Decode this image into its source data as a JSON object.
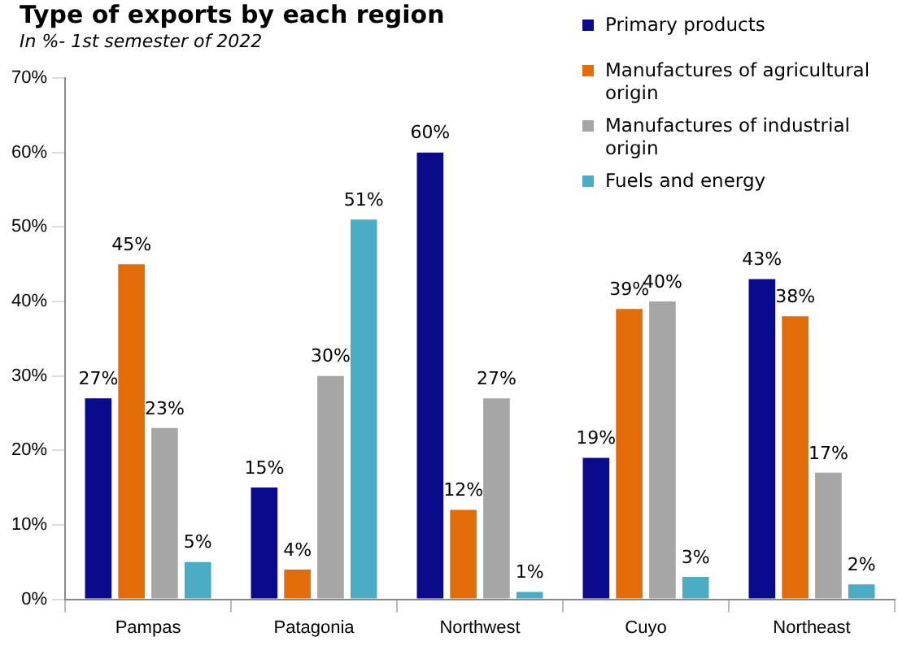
{
  "chart_data": {
    "type": "bar",
    "title": "Type of exports by each region",
    "subtitle": "In %- 1st semester of 2022",
    "categories": [
      "Pampas",
      "Patagonia",
      "Northwest",
      "Cuyo",
      "Northeast"
    ],
    "series": [
      {
        "name": "Primary products",
        "color": "#0a0a8c",
        "values": [
          27,
          15,
          60,
          19,
          43
        ],
        "value_labels": [
          "27%",
          "15%",
          "60%",
          "19%",
          "43%"
        ]
      },
      {
        "name": "Manufactures of agricultural origin",
        "color": "#e36c09",
        "values": [
          45,
          4,
          12,
          39,
          38
        ],
        "value_labels": [
          "45%",
          "4%",
          "12%",
          "39%",
          "38%"
        ]
      },
      {
        "name": "Manufactures of industrial origin",
        "color": "#a6a6a6",
        "values": [
          23,
          30,
          27,
          40,
          17
        ],
        "value_labels": [
          "23%",
          "30%",
          "27%",
          "40%",
          "17%"
        ]
      },
      {
        "name": "Fuels and energy",
        "color": "#4bacc6",
        "values": [
          5,
          51,
          1,
          3,
          2
        ],
        "value_labels": [
          "5%",
          "51%",
          "1%",
          "3%",
          "2%"
        ]
      }
    ],
    "ylim": [
      0,
      70
    ],
    "yticks": [
      {
        "value": 0,
        "label": "0%"
      },
      {
        "value": 10,
        "label": "10%"
      },
      {
        "value": 20,
        "label": "20%"
      },
      {
        "value": 30,
        "label": "30%"
      },
      {
        "value": 40,
        "label": "40%"
      },
      {
        "value": 50,
        "label": "50%"
      },
      {
        "value": 60,
        "label": "60%"
      },
      {
        "value": 70,
        "label": "70%"
      }
    ],
    "grid": false,
    "legend": "top right"
  }
}
